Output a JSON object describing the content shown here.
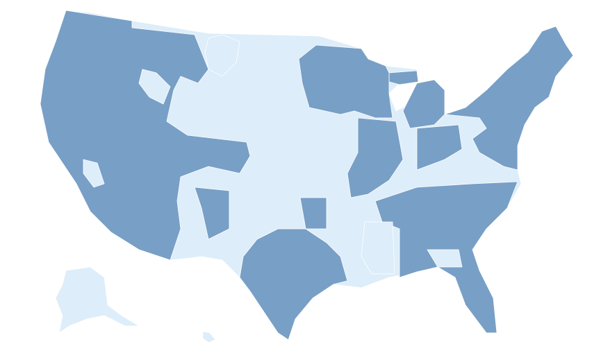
{
  "map": {
    "colors": [
      "#789fc6",
      "#ddedf9"
    ]
  }
}
